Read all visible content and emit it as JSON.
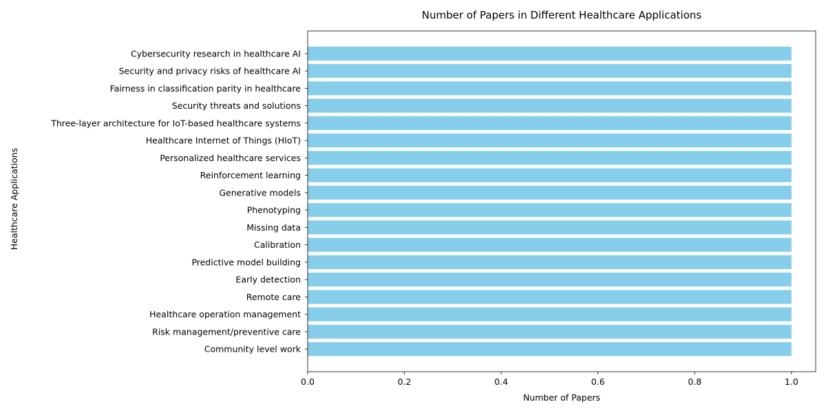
{
  "chart_data": {
    "type": "bar",
    "orientation": "horizontal",
    "title": "Number of Papers in Different Healthcare Applications",
    "xlabel": "Number of Papers",
    "ylabel": "Healthcare Applications",
    "categories": [
      "Community level work",
      "Risk management/preventive care",
      "Healthcare operation management",
      "Remote care",
      "Early detection",
      "Predictive model building",
      "Calibration",
      "Missing data",
      "Phenotyping",
      "Generative models",
      "Reinforcement learning",
      "Personalized healthcare services",
      "Healthcare Internet of Things (HIoT)",
      "Three-layer architecture for IoT-based healthcare systems",
      "Security threats and solutions",
      "Fairness in classification parity in healthcare",
      "Security and privacy risks of healthcare AI",
      "Cybersecurity research in healthcare AI"
    ],
    "values": [
      1,
      1,
      1,
      1,
      1,
      1,
      1,
      1,
      1,
      1,
      1,
      1,
      1,
      1,
      1,
      1,
      1,
      1
    ],
    "xlim": [
      0,
      1.05
    ],
    "xticks": [
      "0.0",
      "0.2",
      "0.4",
      "0.6",
      "0.8",
      "1.0"
    ],
    "bar_color": "#87ceeb",
    "grid": false,
    "legend": "none"
  }
}
